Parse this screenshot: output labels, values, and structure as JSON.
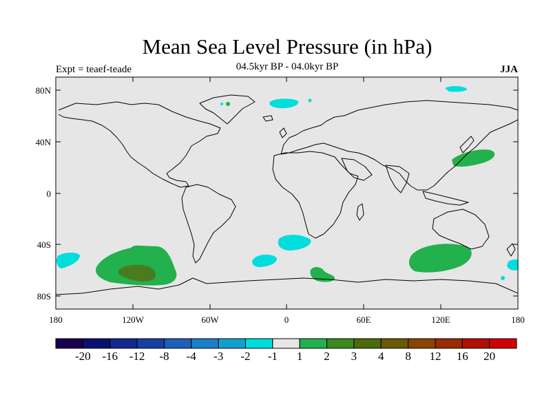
{
  "title": "Mean Sea Level Pressure (in hPa)",
  "subtitle": "04.5kyr BP - 04.0kyr BP",
  "experiment": "Expt = teaef-teade",
  "season": "JJA",
  "map": {
    "background_color": "#e6e6e6",
    "lat_ticks": [
      "80N",
      "40N",
      "0",
      "40S",
      "80S"
    ],
    "lon_ticks": [
      "180",
      "120W",
      "60W",
      "0",
      "60E",
      "120E",
      "180"
    ],
    "anomaly_regions": [
      {
        "label": "central pacific",
        "color": "#22b14c",
        "value": 1
      },
      {
        "label": "central pacific core",
        "color": "#4a7b1e",
        "value": 2
      },
      {
        "label": "australia south",
        "color": "#22b14c",
        "value": 1
      },
      {
        "label": "northwest pacific",
        "color": "#22b14c",
        "value": 1
      },
      {
        "label": "south africa",
        "color": "#22b14c",
        "value": 1
      },
      {
        "label": "south atlantic",
        "color": "#00dddd",
        "value": -1
      },
      {
        "label": "greenland",
        "color": "#00dddd",
        "value": -1
      },
      {
        "label": "arctic",
        "color": "#00dddd",
        "value": -1
      }
    ]
  },
  "colorbar": {
    "colors": [
      "#1a0050",
      "#0a1070",
      "#102890",
      "#1840a0",
      "#1e60b8",
      "#1a80c8",
      "#10a0d0",
      "#00dddd",
      "#e6e6e6",
      "#22b14c",
      "#3a8a20",
      "#4d6a0a",
      "#6a5a00",
      "#8a4400",
      "#9a2a00",
      "#b01000",
      "#d00000"
    ],
    "labels": [
      "-20",
      "-16",
      "-12",
      "-8",
      "-4",
      "-3",
      "-2",
      "-1",
      "1",
      "2",
      "3",
      "4",
      "8",
      "12",
      "16",
      "20"
    ]
  }
}
